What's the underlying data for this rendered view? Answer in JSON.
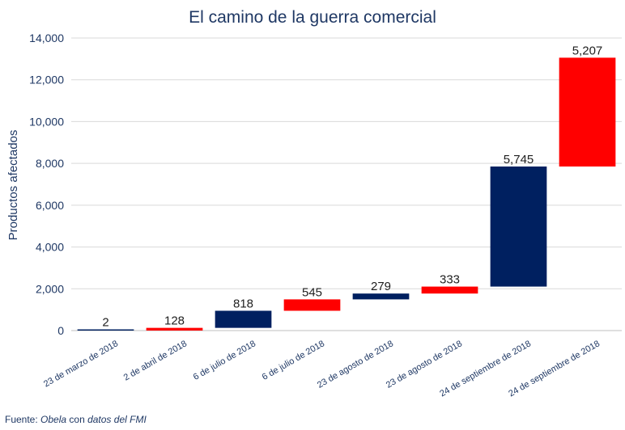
{
  "chart_data": {
    "type": "bar",
    "subtype": "waterfall",
    "title": "El camino de la guerra comercial",
    "ylabel": "Productos afectados",
    "xlabel": "",
    "ylim": [
      0,
      14000
    ],
    "yticks": [
      0,
      2000,
      4000,
      6000,
      8000,
      10000,
      12000,
      14000
    ],
    "ytick_labels": [
      "0",
      "2,000",
      "4,000",
      "6,000",
      "8,000",
      "10,000",
      "12,000",
      "14,000"
    ],
    "grid": true,
    "categories": [
      "23 de marzo de 2018",
      "2 de abril de 2018",
      "6 de julio de 2018",
      "6 de julio de 2018",
      "23 de agosto de 2018",
      "23 de agosto de 2018",
      "24 de septiembre de 2018",
      "24 de septiembre de 2018"
    ],
    "values": [
      2,
      128,
      818,
      545,
      279,
      333,
      5745,
      5207
    ],
    "value_labels": [
      "2",
      "128",
      "818",
      "545",
      "279",
      "333",
      "5,745",
      "5,207"
    ],
    "bar_colors": [
      "#002060",
      "#ff0000",
      "#002060",
      "#ff0000",
      "#002060",
      "#ff0000",
      "#002060",
      "#ff0000"
    ]
  },
  "source": {
    "prefix": "Fuente: ",
    "italic1": "Obela",
    "middle": " con ",
    "italic2": "datos del FMI"
  },
  "colors": {
    "text": "#1f3864",
    "grid": "#d9d9d9",
    "axis": "#bfbfbf"
  }
}
